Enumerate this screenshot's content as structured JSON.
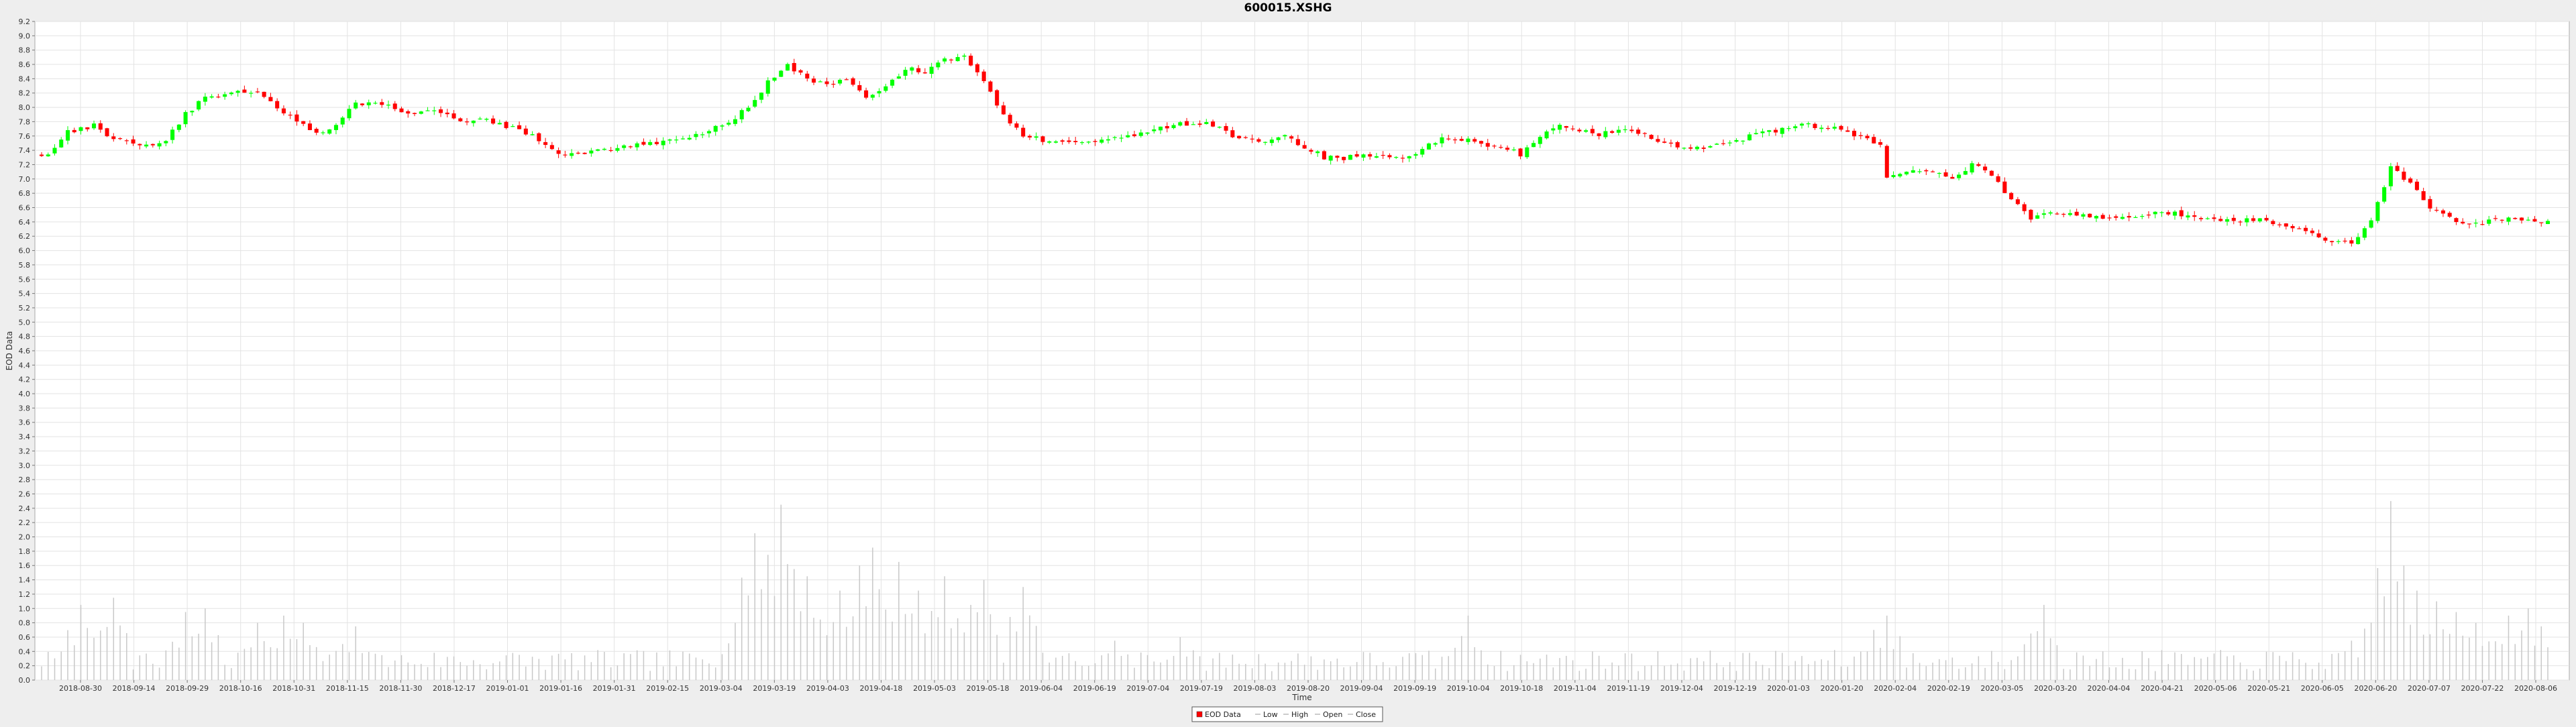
{
  "chart_data": {
    "type": "candlestick",
    "title": "600015.XSHG",
    "xlabel": "Time",
    "ylabel": "EOD Data",
    "ylim": [
      0.0,
      9.2
    ],
    "y_tick_step": 0.2,
    "x_tick_labels": [
      "2018-08-30",
      "2018-09-14",
      "2018-09-29",
      "2018-10-16",
      "2018-10-31",
      "2018-11-15",
      "2018-11-30",
      "2018-12-17",
      "2019-01-01",
      "2019-01-16",
      "2019-01-31",
      "2019-02-15",
      "2019-03-04",
      "2019-03-19",
      "2019-04-03",
      "2019-04-18",
      "2019-05-03",
      "2019-05-18",
      "2019-06-04",
      "2019-06-19",
      "2019-07-04",
      "2019-07-19",
      "2019-08-03",
      "2019-08-20",
      "2019-09-04",
      "2019-09-19",
      "2019-10-04",
      "2019-10-18",
      "2019-11-04",
      "2019-11-19",
      "2019-12-04",
      "2019-12-19",
      "2020-01-03",
      "2020-01-20",
      "2020-02-04",
      "2020-02-19",
      "2020-03-05",
      "2020-03-20",
      "2020-04-04",
      "2020-04-21",
      "2020-05-06",
      "2020-05-21",
      "2020-06-05",
      "2020-06-20",
      "2020-07-07",
      "2020-07-22",
      "2020-08-06"
    ],
    "price_anchors": [
      [
        0,
        7.35
      ],
      [
        2,
        7.4
      ],
      [
        4,
        7.65
      ],
      [
        8,
        7.75
      ],
      [
        10,
        7.6
      ],
      [
        13,
        7.55
      ],
      [
        16,
        7.45
      ],
      [
        19,
        7.55
      ],
      [
        22,
        7.9
      ],
      [
        25,
        8.15
      ],
      [
        28,
        8.2
      ],
      [
        30,
        8.2
      ],
      [
        33,
        8.2
      ],
      [
        36,
        8.0
      ],
      [
        39,
        7.8
      ],
      [
        42,
        7.65
      ],
      [
        45,
        7.75
      ],
      [
        48,
        8.05
      ],
      [
        51,
        8.05
      ],
      [
        54,
        8.0
      ],
      [
        57,
        7.9
      ],
      [
        61,
        7.95
      ],
      [
        64,
        7.8
      ],
      [
        67,
        7.85
      ],
      [
        70,
        7.75
      ],
      [
        73,
        7.7
      ],
      [
        76,
        7.55
      ],
      [
        79,
        7.35
      ],
      [
        82,
        7.32
      ],
      [
        86,
        7.42
      ],
      [
        90,
        7.45
      ],
      [
        94,
        7.5
      ],
      [
        98,
        7.58
      ],
      [
        102,
        7.68
      ],
      [
        105,
        7.8
      ],
      [
        108,
        8.0
      ],
      [
        111,
        8.35
      ],
      [
        114,
        8.6
      ],
      [
        117,
        8.4
      ],
      [
        120,
        8.3
      ],
      [
        123,
        8.4
      ],
      [
        126,
        8.15
      ],
      [
        129,
        8.3
      ],
      [
        132,
        8.55
      ],
      [
        135,
        8.5
      ],
      [
        138,
        8.65
      ],
      [
        141,
        8.7
      ],
      [
        144,
        8.35
      ],
      [
        147,
        7.9
      ],
      [
        150,
        7.6
      ],
      [
        153,
        7.55
      ],
      [
        158,
        7.5
      ],
      [
        163,
        7.55
      ],
      [
        168,
        7.65
      ],
      [
        173,
        7.75
      ],
      [
        178,
        7.8
      ],
      [
        182,
        7.6
      ],
      [
        186,
        7.5
      ],
      [
        190,
        7.6
      ],
      [
        193,
        7.45
      ],
      [
        196,
        7.3
      ],
      [
        199,
        7.28
      ],
      [
        202,
        7.35
      ],
      [
        205,
        7.3
      ],
      [
        208,
        7.3
      ],
      [
        211,
        7.42
      ],
      [
        214,
        7.55
      ],
      [
        217,
        7.55
      ],
      [
        220,
        7.5
      ],
      [
        223,
        7.45
      ],
      [
        226,
        7.35
      ],
      [
        229,
        7.6
      ],
      [
        232,
        7.75
      ],
      [
        235,
        7.7
      ],
      [
        238,
        7.6
      ],
      [
        241,
        7.7
      ],
      [
        244,
        7.65
      ],
      [
        247,
        7.5
      ],
      [
        250,
        7.45
      ],
      [
        254,
        7.45
      ],
      [
        258,
        7.5
      ],
      [
        262,
        7.62
      ],
      [
        266,
        7.7
      ],
      [
        270,
        7.75
      ],
      [
        274,
        7.7
      ],
      [
        278,
        7.6
      ],
      [
        281,
        7.45
      ],
      [
        282,
        7.0
      ],
      [
        285,
        7.1
      ],
      [
        289,
        7.1
      ],
      [
        292,
        7.0
      ],
      [
        295,
        7.2
      ],
      [
        298,
        7.05
      ],
      [
        301,
        6.7
      ],
      [
        304,
        6.45
      ],
      [
        307,
        6.55
      ],
      [
        311,
        6.5
      ],
      [
        315,
        6.45
      ],
      [
        319,
        6.45
      ],
      [
        323,
        6.55
      ],
      [
        327,
        6.5
      ],
      [
        331,
        6.45
      ],
      [
        335,
        6.4
      ],
      [
        339,
        6.45
      ],
      [
        343,
        6.35
      ],
      [
        346,
        6.3
      ],
      [
        349,
        6.15
      ],
      [
        353,
        6.12
      ],
      [
        356,
        6.4
      ],
      [
        359,
        7.15
      ],
      [
        362,
        6.95
      ],
      [
        365,
        6.6
      ],
      [
        368,
        6.45
      ],
      [
        371,
        6.35
      ],
      [
        375,
        6.45
      ],
      [
        379,
        6.45
      ],
      [
        383,
        6.4
      ]
    ],
    "volume_peaks": [
      [
        6,
        1.05
      ],
      [
        11,
        1.15
      ],
      [
        22,
        0.95
      ],
      [
        25,
        1.0
      ],
      [
        33,
        0.8
      ],
      [
        37,
        0.9
      ],
      [
        40,
        0.8
      ],
      [
        48,
        0.75
      ],
      [
        106,
        0.8
      ],
      [
        109,
        2.05
      ],
      [
        111,
        1.75
      ],
      [
        113,
        2.45
      ],
      [
        115,
        1.55
      ],
      [
        117,
        1.45
      ],
      [
        122,
        1.25
      ],
      [
        125,
        1.6
      ],
      [
        127,
        1.85
      ],
      [
        131,
        1.65
      ],
      [
        134,
        1.25
      ],
      [
        138,
        1.45
      ],
      [
        142,
        1.05
      ],
      [
        144,
        1.4
      ],
      [
        150,
        1.3
      ],
      [
        164,
        0.55
      ],
      [
        174,
        0.6
      ],
      [
        218,
        0.9
      ],
      [
        280,
        0.7
      ],
      [
        282,
        0.9
      ],
      [
        303,
        0.5
      ],
      [
        306,
        1.05
      ],
      [
        353,
        0.55
      ],
      [
        357,
        1.2
      ],
      [
        359,
        2.5
      ],
      [
        361,
        1.6
      ],
      [
        363,
        1.25
      ],
      [
        366,
        1.1
      ],
      [
        369,
        0.95
      ],
      [
        372,
        0.8
      ],
      [
        377,
        0.9
      ],
      [
        380,
        1.0
      ],
      [
        382,
        0.75
      ]
    ],
    "series_count": 384,
    "legend_entries": [
      "EOD Data",
      "Low",
      "High",
      "Open",
      "Close"
    ],
    "colors": {
      "up": "#00ff00",
      "down": "#ff0000",
      "volume": "#c8c8c8",
      "grid": "#e3e3e3",
      "plot_bg": "#ffffff",
      "outline": "#aaaaaa"
    },
    "grid": true,
    "legend_position": "bottom-center"
  }
}
